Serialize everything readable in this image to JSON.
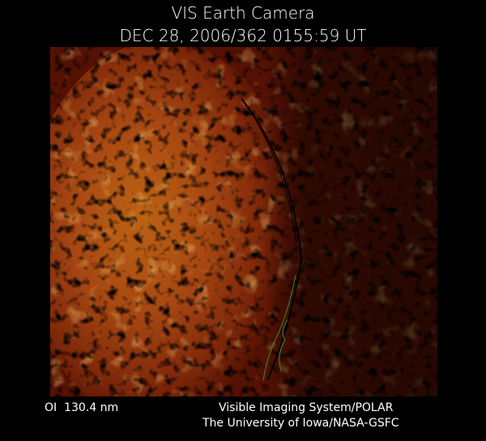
{
  "header": {
    "title": "VIS Earth Camera",
    "timestamp": "DEC 28, 2006/362 0155:59 UT"
  },
  "footer": {
    "wavelength": "OI  130.4 nm",
    "instrument": "Visible Imaging System/POLAR",
    "credit": "The University of Iowa/NASA-GSFC"
  }
}
